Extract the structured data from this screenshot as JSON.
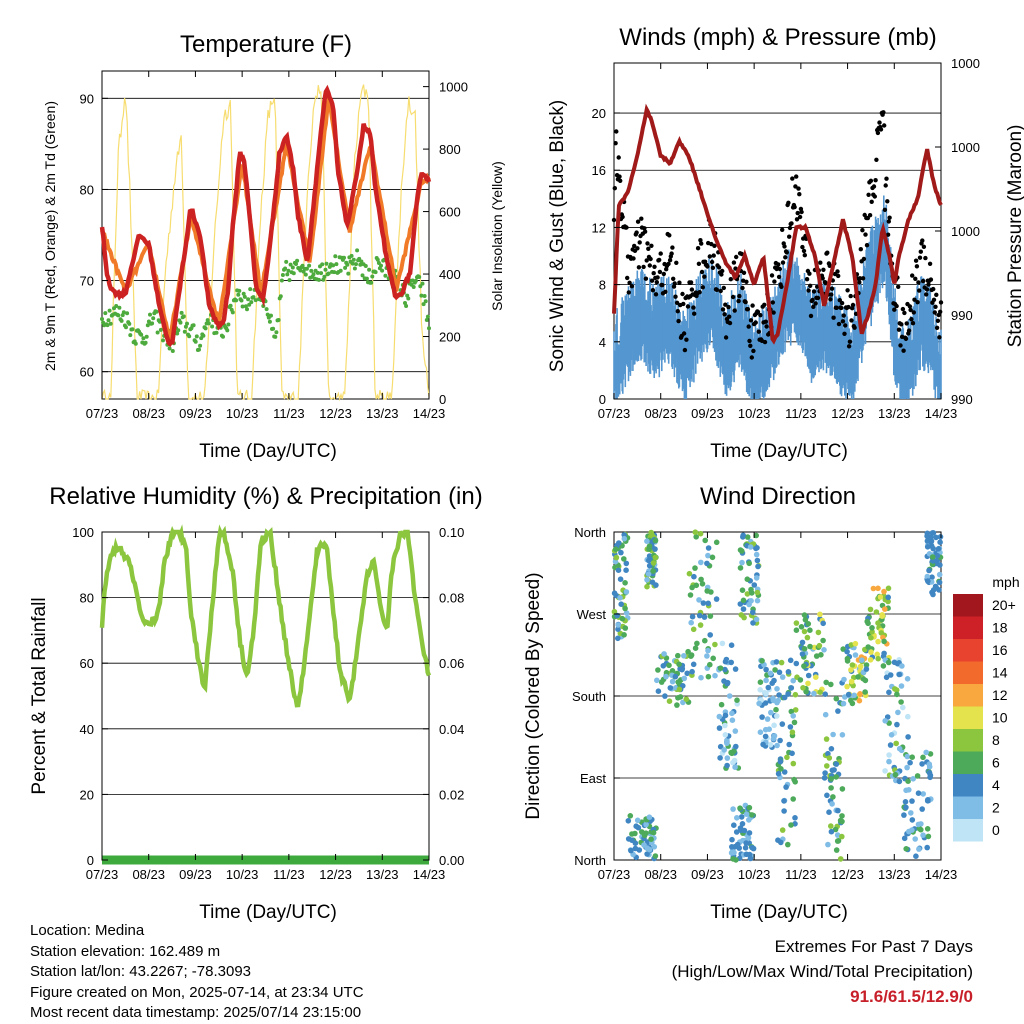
{
  "colors": {
    "temp2m": "#cc2222",
    "temp9m": "#f07a28",
    "dewpoint": "#4daa3c",
    "solar": "#f7dd70",
    "wind_sonic": "#5496d0",
    "gust": "#000000",
    "pressure": "#a11a1a",
    "rh": "#8cc63f",
    "precip": "#3eaa3e"
  },
  "speed_colorbar": {
    "unit": "mph",
    "labels": [
      "20+",
      "18",
      "16",
      "14",
      "12",
      "10",
      "8",
      "6",
      "4",
      "2",
      "0"
    ],
    "colors": [
      "#a2161e",
      "#cd2127",
      "#e8432f",
      "#f36a2d",
      "#f9a83f",
      "#e4e34e",
      "#8cc63f",
      "#4daa5a",
      "#3f86c2",
      "#7fbce6",
      "#bfe4f6"
    ]
  },
  "chart_data": [
    {
      "id": "temperature",
      "type": "line",
      "title": "Temperature (F)",
      "xlabel": "Time (Day/UTC)",
      "ylabel": "2m & 9m T (Red, Orange) & 2m Td (Green)",
      "ylabel_right": "Solar Insolation (Yellow)",
      "x_tick_labels": [
        "07/23",
        "08/23",
        "09/23",
        "10/23",
        "11/23",
        "12/23",
        "13/23",
        "14/23"
      ],
      "xlim_days": [
        0,
        7
      ],
      "ylim": [
        57,
        93
      ],
      "y_ticks": [
        60,
        70,
        80,
        90
      ],
      "ylim_right": [
        0,
        1050
      ],
      "y_ticks_right": [
        0,
        200,
        400,
        600,
        800,
        1000
      ],
      "series": [
        {
          "role": "2m T",
          "color": "#cc2222",
          "x": [
            0,
            0.1,
            0.2,
            0.35,
            0.5,
            0.65,
            0.8,
            1.0,
            1.2,
            1.4,
            1.5,
            1.7,
            1.9,
            2.1,
            2.3,
            2.5,
            2.6,
            2.7,
            2.8,
            2.95,
            3.05,
            3.2,
            3.3,
            3.45,
            3.6,
            3.8,
            3.95,
            4.1,
            4.2,
            4.4,
            4.6,
            4.7,
            4.8,
            4.95,
            5.05,
            5.25,
            5.4,
            5.6,
            5.75,
            5.85,
            6.0,
            6.1,
            6.3,
            6.45,
            6.6,
            6.75,
            6.85,
            7.0
          ],
          "y": [
            76,
            71,
            69,
            68.5,
            68.6,
            72,
            75,
            74,
            68,
            63.5,
            63,
            70.5,
            78,
            75,
            67,
            65,
            65.5,
            69,
            76,
            84,
            83,
            75,
            69,
            68,
            74,
            84,
            86,
            82,
            77,
            72,
            82,
            87,
            91,
            89,
            82,
            76,
            80,
            87,
            86,
            80,
            75.5,
            72,
            68,
            69,
            71,
            79,
            82,
            81
          ]
        },
        {
          "role": "9m T",
          "color": "#f07a28",
          "x": [
            0,
            0.5,
            1.0,
            1.45,
            1.9,
            2.5,
            3.0,
            3.4,
            3.95,
            4.45,
            4.85,
            5.3,
            5.75,
            6.3,
            6.85,
            7.0
          ],
          "y": [
            75.5,
            68.8,
            74,
            63.4,
            77,
            65.2,
            83,
            68.5,
            85,
            72,
            90,
            75.5,
            85,
            69,
            81,
            81
          ]
        },
        {
          "role": "2m Td",
          "color": "#4daa3c",
          "x": [
            0,
            0.3,
            0.5,
            0.7,
            0.9,
            1.1,
            1.3,
            1.5,
            1.7,
            1.9,
            2.1,
            2.3,
            2.5,
            2.7,
            2.9,
            3.1,
            3.3,
            3.5,
            3.7,
            3.9,
            4.1,
            4.3,
            4.5,
            4.7,
            4.9,
            5.1,
            5.3,
            5.5,
            5.7,
            5.9,
            6.1,
            6.3,
            6.5,
            6.7,
            6.85,
            7.0
          ],
          "y": [
            66,
            66.5,
            66,
            64,
            63.8,
            66,
            64.5,
            63,
            65.5,
            64.5,
            63,
            66.5,
            64,
            65.5,
            69,
            67.5,
            69,
            68,
            63,
            71,
            71,
            72,
            71,
            71,
            72,
            71.5,
            71.5,
            72.5,
            70,
            72,
            71,
            70,
            68,
            70,
            69,
            65
          ]
        },
        {
          "role": "Solar insolation",
          "axis": "right",
          "color": "#f7dd70",
          "x": [
            0,
            0.2,
            0.25,
            0.35,
            0.5,
            0.6,
            0.75,
            1.2,
            1.35,
            1.55,
            1.7,
            1.85,
            2.2,
            2.4,
            2.6,
            2.75,
            2.9,
            3.2,
            3.4,
            3.55,
            3.7,
            3.85,
            4.2,
            4.4,
            4.55,
            4.7,
            4.85,
            5.2,
            5.4,
            5.55,
            5.7,
            5.85,
            6.2,
            6.4,
            6.55,
            6.7,
            6.85,
            7.0
          ],
          "y": [
            0,
            0,
            350,
            780,
            1000,
            650,
            0,
            0,
            400,
            700,
            850,
            0,
            0,
            500,
            900,
            950,
            0,
            0,
            600,
            900,
            980,
            0,
            0,
            700,
            960,
            1000,
            0,
            0,
            750,
            980,
            990,
            0,
            0,
            650,
            950,
            920,
            200,
            0
          ]
        }
      ]
    },
    {
      "id": "winds_pressure",
      "type": "scatter",
      "title": "Winds (mph) & Pressure (mb)",
      "xlabel": "Time (Day/UTC)",
      "ylabel": "Sonic Wind & Gust (Blue, Black)",
      "ylabel_right": "Station Pressure (Maroon)",
      "x_tick_labels": [
        "07/23",
        "08/23",
        "09/23",
        "10/23",
        "11/23",
        "12/23",
        "13/23",
        "14/23"
      ],
      "xlim_days": [
        0,
        7
      ],
      "ylim": [
        0,
        23.5
      ],
      "y_ticks": [
        0,
        4,
        8,
        12,
        16,
        20
      ],
      "y_tick_labels_right": [
        "990",
        "990",
        "1000",
        "1000",
        "1000"
      ],
      "series": [
        {
          "role": "Sonic wind",
          "color": "#5496d0",
          "x": [
            0,
            0.3,
            0.6,
            0.9,
            1.2,
            1.5,
            1.8,
            2.1,
            2.4,
            2.7,
            3.0,
            3.3,
            3.6,
            3.9,
            4.2,
            4.5,
            4.8,
            5.1,
            5.4,
            5.6,
            5.8,
            6.0,
            6.2,
            6.4,
            6.6,
            6.8,
            7.0
          ],
          "y": [
            3,
            5,
            6.5,
            5,
            6.5,
            3,
            6,
            7.5,
            4,
            6,
            2.5,
            4,
            7,
            8,
            5,
            6,
            4.5,
            3,
            8,
            10,
            12,
            5,
            2,
            4,
            6,
            5,
            2
          ]
        },
        {
          "role": "Gust",
          "color": "#000000",
          "x": [
            0,
            0.05,
            0.3,
            0.6,
            0.9,
            1.2,
            1.5,
            1.8,
            2.1,
            2.4,
            2.7,
            3.0,
            3.3,
            3.6,
            3.9,
            4.2,
            4.5,
            4.8,
            5.1,
            5.4,
            5.6,
            5.75,
            5.8,
            6.0,
            6.2,
            6.4,
            6.6,
            6.8,
            7.0
          ],
          "y": [
            12,
            18,
            9,
            11,
            8,
            10,
            5,
            9,
            11,
            6,
            9,
            4,
            6,
            10,
            15,
            7,
            9,
            7,
            5,
            12,
            16,
            21.5,
            15,
            8,
            4,
            7,
            10,
            8,
            5
          ]
        },
        {
          "role": "Station pressure",
          "axis": "right",
          "color": "#a11a1a",
          "scale": [
            0,
            23.5
          ],
          "x": [
            0,
            0.1,
            0.3,
            0.5,
            0.7,
            0.8,
            1.0,
            1.2,
            1.4,
            1.6,
            1.8,
            2.0,
            2.2,
            2.4,
            2.6,
            2.8,
            3.0,
            3.2,
            3.4,
            3.5,
            3.7,
            3.9,
            4.1,
            4.3,
            4.5,
            4.7,
            4.9,
            5.1,
            5.3,
            5.45,
            5.6,
            5.75,
            5.9,
            6.0,
            6.1,
            6.3,
            6.5,
            6.7,
            6.85,
            7.0
          ],
          "y": [
            6,
            13.5,
            14.5,
            17,
            20.2,
            19.5,
            17,
            16.5,
            18,
            17,
            15,
            13,
            11,
            9.5,
            8.5,
            10,
            8,
            10,
            4,
            4.5,
            8,
            12,
            12,
            10,
            6.5,
            9.5,
            12.5,
            10,
            4.5,
            6,
            8,
            12,
            10,
            8,
            10,
            12.5,
            14,
            17.5,
            15,
            13.5
          ]
        }
      ]
    },
    {
      "id": "humidity_precip",
      "type": "line",
      "title": "Relative Humidity (%) & Precipitation (in)",
      "xlabel": "Time (Day/UTC)",
      "ylabel": "Percent & Total Rainfall",
      "x_tick_labels": [
        "07/23",
        "08/23",
        "09/23",
        "10/23",
        "11/23",
        "12/23",
        "13/23",
        "14/23"
      ],
      "xlim_days": [
        0,
        7
      ],
      "ylim": [
        0,
        100
      ],
      "y_ticks": [
        0,
        20,
        40,
        60,
        80,
        100
      ],
      "y_tick_labels_right": [
        "0.00",
        "0.02",
        "0.04",
        "0.06",
        "0.08",
        "0.10"
      ],
      "series": [
        {
          "role": "Relative humidity",
          "color": "#8cc63f",
          "x": [
            0,
            0.1,
            0.25,
            0.4,
            0.55,
            0.7,
            0.85,
            1.0,
            1.2,
            1.35,
            1.5,
            1.65,
            1.8,
            1.9,
            2.05,
            2.2,
            2.35,
            2.5,
            2.6,
            2.8,
            2.95,
            3.1,
            3.25,
            3.4,
            3.6,
            3.8,
            3.95,
            4.1,
            4.2,
            4.4,
            4.6,
            4.8,
            4.95,
            5.1,
            5.3,
            5.45,
            5.65,
            5.8,
            5.95,
            6.1,
            6.2,
            6.4,
            6.55,
            6.7,
            6.85,
            7.0
          ],
          "y": [
            72,
            88,
            95,
            94,
            92,
            84,
            73,
            71,
            75,
            92,
            99,
            100,
            96,
            76,
            62,
            52,
            76,
            99,
            100,
            88,
            67,
            56,
            70,
            97,
            100,
            79,
            64,
            52,
            46,
            68,
            94,
            97,
            76,
            57,
            49,
            62,
            85,
            92,
            78,
            70,
            88,
            100,
            100,
            80,
            66,
            56
          ]
        },
        {
          "role": "Precipitation",
          "axis": "right",
          "color": "#3eaa3e",
          "x": [
            0,
            7
          ],
          "y": [
            0,
            0
          ]
        }
      ]
    },
    {
      "id": "wind_direction",
      "type": "scatter",
      "title": "Wind Direction",
      "xlabel": "Time (Day/UTC)",
      "ylabel": "Direction (Colored By Speed)",
      "x_tick_labels": [
        "07/23",
        "08/23",
        "09/23",
        "10/23",
        "11/23",
        "12/23",
        "13/23",
        "14/23"
      ],
      "xlim_days": [
        0,
        7
      ],
      "ylim": [
        0,
        360
      ],
      "y_ticks": [
        0,
        90,
        180,
        270,
        360
      ],
      "y_tick_labels": [
        "North",
        "East",
        "South",
        "West",
        "North"
      ],
      "clusters": [
        {
          "x": [
            0.0,
            0.3
          ],
          "y": [
            240,
            360
          ],
          "speed": [
            2,
            8
          ]
        },
        {
          "x": [
            0.3,
            0.9
          ],
          "y": [
            0,
            50
          ],
          "speed": [
            2,
            6
          ]
        },
        {
          "x": [
            0.7,
            0.9
          ],
          "y": [
            300,
            360
          ],
          "speed": [
            2,
            8
          ]
        },
        {
          "x": [
            0.9,
            1.6
          ],
          "y": [
            170,
            230
          ],
          "speed": [
            2,
            8
          ]
        },
        {
          "x": [
            1.6,
            2.2
          ],
          "y": [
            200,
            360
          ],
          "speed": [
            2,
            8
          ]
        },
        {
          "x": [
            2.2,
            2.7
          ],
          "y": [
            100,
            240
          ],
          "speed": [
            0,
            6
          ]
        },
        {
          "x": [
            2.5,
            3.0
          ],
          "y": [
            0,
            60
          ],
          "speed": [
            2,
            6
          ]
        },
        {
          "x": [
            2.7,
            3.1
          ],
          "y": [
            260,
            360
          ],
          "speed": [
            2,
            8
          ]
        },
        {
          "x": [
            3.1,
            3.5
          ],
          "y": [
            120,
            220
          ],
          "speed": [
            0,
            6
          ]
        },
        {
          "x": [
            3.5,
            3.9
          ],
          "y": [
            0,
            220
          ],
          "speed": [
            2,
            8
          ]
        },
        {
          "x": [
            3.9,
            4.5
          ],
          "y": [
            180,
            270
          ],
          "speed": [
            2,
            10
          ]
        },
        {
          "x": [
            4.5,
            4.9
          ],
          "y": [
            0,
            200
          ],
          "speed": [
            2,
            8
          ]
        },
        {
          "x": [
            4.9,
            5.4
          ],
          "y": [
            170,
            240
          ],
          "speed": [
            2,
            12
          ]
        },
        {
          "x": [
            5.4,
            5.9
          ],
          "y": [
            200,
            300
          ],
          "speed": [
            4,
            12
          ]
        },
        {
          "x": [
            5.8,
            6.3
          ],
          "y": [
            70,
            220
          ],
          "speed": [
            0,
            8
          ]
        },
        {
          "x": [
            6.2,
            6.8
          ],
          "y": [
            0,
            120
          ],
          "speed": [
            2,
            6
          ]
        },
        {
          "x": [
            6.7,
            7.0
          ],
          "y": [
            290,
            360
          ],
          "speed": [
            2,
            6
          ]
        }
      ]
    }
  ],
  "info": {
    "location": "Location: Medina",
    "elevation": "Station elevation: 162.489 m",
    "latlon": "Station lat/lon: 43.2267; -78.3093",
    "created": "Figure created on Mon, 2025-07-14, at 23:34 UTC",
    "recent": "Most recent data timestamp: 2025/07/14 23:15:00"
  },
  "extremes": {
    "line1": "Extremes For Past 7 Days",
    "line2": "(High/Low/Max Wind/Total Precipitation)",
    "values": "91.6/61.5/12.9/0"
  }
}
